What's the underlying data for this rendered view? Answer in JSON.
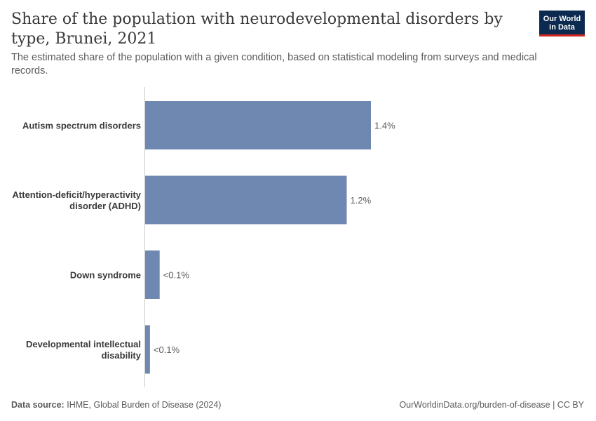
{
  "header": {
    "title": "Share of the population with neurodevelopmental disorders by type, Brunei, 2021",
    "subtitle": "The estimated share of the population with a given condition, based on statistical modeling from surveys and medical records."
  },
  "logo": {
    "line1": "Our World",
    "line2": "in Data"
  },
  "footer": {
    "source_label": "Data source:",
    "source_text": "IHME, Global Burden of Disease (2024)",
    "url": "OurWorldinData.org/burden-of-disease | CC BY"
  },
  "colors": {
    "bar": "#6f88b1",
    "axis": "#cccccc",
    "label": "#3a3a3a",
    "value_label": "#5b5b5b"
  },
  "chart_data": {
    "type": "bar",
    "orientation": "horizontal",
    "categories": [
      "Autism spectrum disorders",
      "Attention-deficit/hyperactivity disorder (ADHD)",
      "Down syndrome",
      "Developmental intellectual disability"
    ],
    "category_lines": [
      [
        "Autism spectrum disorders"
      ],
      [
        "Attention-deficit/hyperactivity",
        "disorder (ADHD)"
      ],
      [
        "Down syndrome"
      ],
      [
        "Developmental intellectual",
        "disability"
      ]
    ],
    "values": [
      1.4,
      1.25,
      0.09,
      0.03
    ],
    "value_labels": [
      "1.4%",
      "1.2%",
      "<0.1%",
      "<0.1%"
    ],
    "unit": "%",
    "xlim": [
      0,
      1.4
    ]
  }
}
